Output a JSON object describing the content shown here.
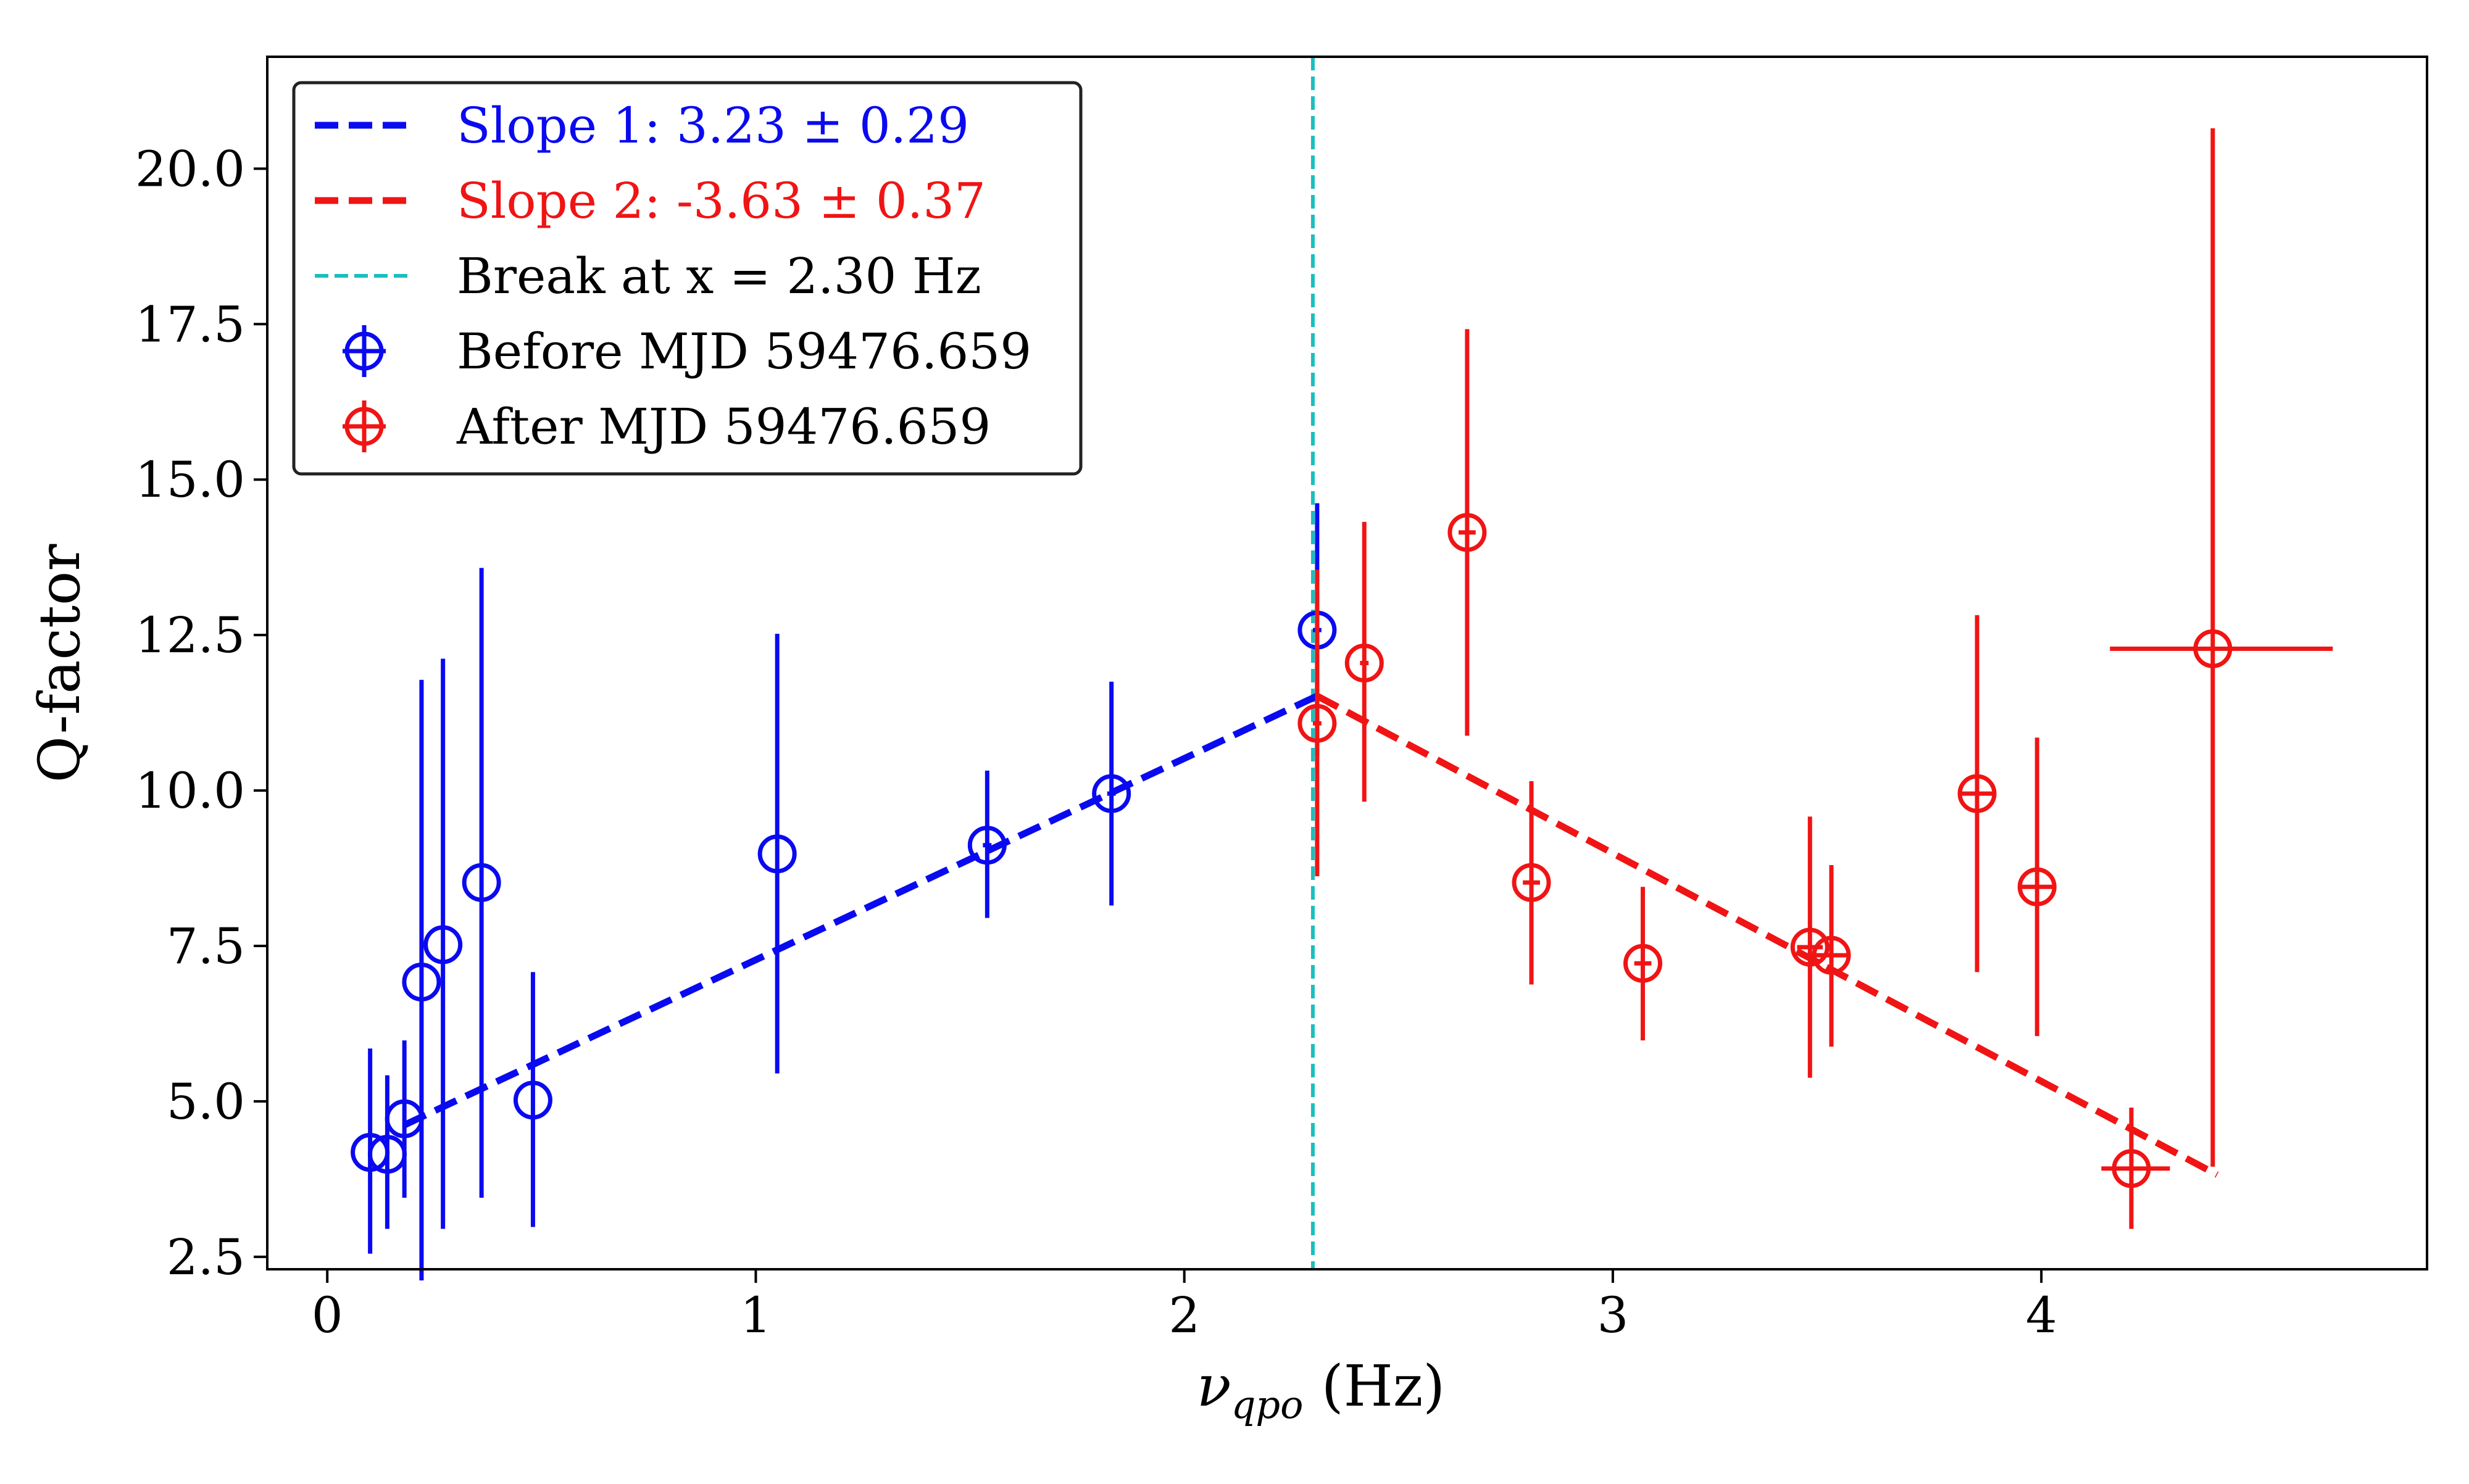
{
  "chart_data": {
    "type": "scatter",
    "xlabel_symbol": "ν",
    "xlabel_subscript": "qpo",
    "xlabel_unit": " (Hz)",
    "ylabel": "Q-factor",
    "xlim": [
      -0.14,
      4.9
    ],
    "ylim": [
      2.3,
      21.8
    ],
    "xticks": [
      0,
      1,
      2,
      3,
      4
    ],
    "xtick_labels": [
      "0",
      "1",
      "2",
      "3",
      "4"
    ],
    "yticks": [
      2.5,
      5.0,
      7.5,
      10.0,
      12.5,
      15.0,
      17.5,
      20.0
    ],
    "ytick_labels": [
      "2.5",
      "5.0",
      "7.5",
      "10.0",
      "12.5",
      "15.0",
      "17.5",
      "20.0"
    ],
    "grid": false,
    "legend_position": "top-left",
    "colors": {
      "before": "#0a0af0",
      "after": "#f01414",
      "break": "#1abfbf",
      "axis": "#000000"
    },
    "series": [
      {
        "name": "Before MJD 59476.659",
        "color": "#0a0af0",
        "points": [
          {
            "x": 0.1,
            "y": 4.18,
            "ylo": 2.55,
            "yhi": 5.85,
            "xlo": 0.1,
            "xhi": 0.1
          },
          {
            "x": 0.14,
            "y": 4.15,
            "ylo": 2.95,
            "yhi": 5.42,
            "xlo": 0.14,
            "xhi": 0.14
          },
          {
            "x": 0.18,
            "y": 4.72,
            "ylo": 3.45,
            "yhi": 5.98,
            "xlo": 0.18,
            "xhi": 0.18
          },
          {
            "x": 0.22,
            "y": 6.92,
            "ylo": 2.12,
            "yhi": 11.78,
            "xlo": 0.22,
            "xhi": 0.22
          },
          {
            "x": 0.27,
            "y": 7.52,
            "ylo": 2.95,
            "yhi": 12.12,
            "xlo": 0.27,
            "xhi": 0.27
          },
          {
            "x": 0.36,
            "y": 8.52,
            "ylo": 3.45,
            "yhi": 13.58,
            "xlo": 0.36,
            "xhi": 0.36
          },
          {
            "x": 0.48,
            "y": 5.02,
            "ylo": 2.98,
            "yhi": 7.08,
            "xlo": 0.48,
            "xhi": 0.48
          },
          {
            "x": 1.05,
            "y": 8.98,
            "ylo": 5.45,
            "yhi": 12.52,
            "xlo": 1.05,
            "xhi": 1.05
          },
          {
            "x": 1.54,
            "y": 9.12,
            "ylo": 7.95,
            "yhi": 10.32,
            "xlo": 1.53,
            "xhi": 1.55
          },
          {
            "x": 1.83,
            "y": 9.95,
            "ylo": 8.15,
            "yhi": 11.75,
            "xlo": 1.82,
            "xhi": 1.84
          },
          {
            "x": 2.31,
            "y": 12.58,
            "ylo": 10.55,
            "yhi": 14.62,
            "xlo": 2.3,
            "xhi": 2.32
          }
        ]
      },
      {
        "name": "After MJD 59476.659",
        "color": "#f01414",
        "points": [
          {
            "x": 2.31,
            "y": 11.08,
            "ylo": 8.62,
            "yhi": 13.55,
            "xlo": 2.3,
            "xhi": 2.32
          },
          {
            "x": 2.42,
            "y": 12.05,
            "ylo": 9.82,
            "yhi": 14.32,
            "xlo": 2.41,
            "xhi": 2.43
          },
          {
            "x": 2.66,
            "y": 14.15,
            "ylo": 10.88,
            "yhi": 17.42,
            "xlo": 2.64,
            "xhi": 2.68
          },
          {
            "x": 2.81,
            "y": 8.52,
            "ylo": 6.88,
            "yhi": 10.15,
            "xlo": 2.79,
            "xhi": 2.83
          },
          {
            "x": 3.07,
            "y": 7.22,
            "ylo": 5.98,
            "yhi": 8.45,
            "xlo": 3.05,
            "xhi": 3.09
          },
          {
            "x": 3.46,
            "y": 7.48,
            "ylo": 5.38,
            "yhi": 9.58,
            "xlo": 3.43,
            "xhi": 3.49
          },
          {
            "x": 3.51,
            "y": 7.35,
            "ylo": 5.88,
            "yhi": 8.8,
            "xlo": 3.47,
            "xhi": 3.55
          },
          {
            "x": 3.85,
            "y": 9.95,
            "ylo": 7.08,
            "yhi": 12.82,
            "xlo": 3.81,
            "xhi": 3.89
          },
          {
            "x": 3.99,
            "y": 8.45,
            "ylo": 6.05,
            "yhi": 10.85,
            "xlo": 3.95,
            "xhi": 4.03
          },
          {
            "x": 4.21,
            "y": 3.92,
            "ylo": 2.95,
            "yhi": 4.9,
            "xlo": 4.14,
            "xhi": 4.3
          },
          {
            "x": 4.4,
            "y": 12.28,
            "ylo": 3.95,
            "yhi": 20.65,
            "xlo": 4.16,
            "xhi": 4.68
          }
        ]
      }
    ],
    "fit_lines": [
      {
        "name": "Slope 1: 3.23 ± 0.29",
        "color": "#0a0af0",
        "x": [
          0.18,
          2.31
        ],
        "y": [
          4.62,
          11.52
        ]
      },
      {
        "name": "Slope 2: -3.63 ± 0.37",
        "color": "#f01414",
        "x": [
          2.31,
          4.41
        ],
        "y": [
          11.52,
          3.82
        ]
      }
    ],
    "break": {
      "name": "Break at x = 2.30 Hz",
      "x": 2.3,
      "color": "#1abfbf"
    },
    "legend": [
      {
        "label": "Slope 1: 3.23 ± 0.29",
        "kind": "dash",
        "color": "#0a0af0",
        "text_color": "#0a0af0"
      },
      {
        "label": "Slope 2: -3.63 ± 0.37",
        "kind": "dash",
        "color": "#f01414",
        "text_color": "#f01414"
      },
      {
        "label": "Break at x = 2.30 Hz",
        "kind": "thin-dash",
        "color": "#1abfbf",
        "text_color": "#000000"
      },
      {
        "label": "Before MJD 59476.659",
        "kind": "marker",
        "color": "#0a0af0",
        "text_color": "#000000"
      },
      {
        "label": "After MJD 59476.659",
        "kind": "marker",
        "color": "#f01414",
        "text_color": "#000000"
      }
    ]
  }
}
